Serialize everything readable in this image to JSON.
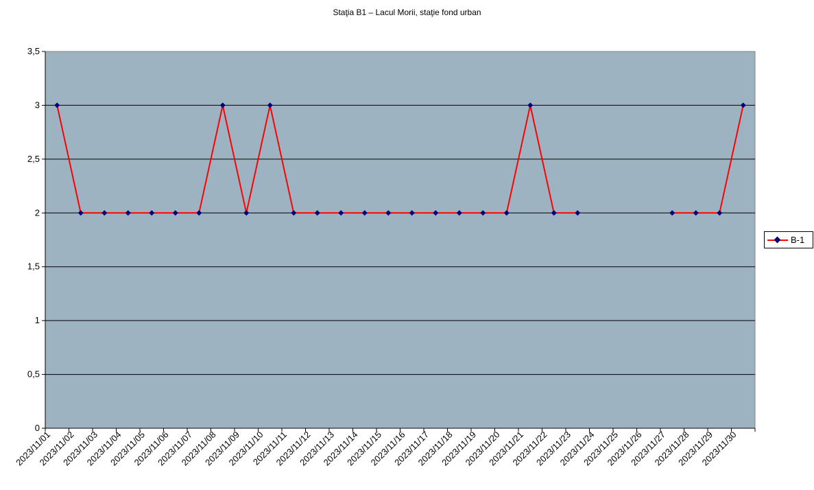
{
  "chart_data": {
    "type": "line",
    "title": "Staţia B1 – Lacul Morii, staţie fond urban",
    "xlabel": "",
    "ylabel": "",
    "categories": [
      "2023/11/01",
      "2023/11/02",
      "2023/11/03",
      "2023/11/04",
      "2023/11/05",
      "2023/11/06",
      "2023/11/07",
      "2023/11/08",
      "2023/11/09",
      "2023/11/10",
      "2023/11/11",
      "2023/11/12",
      "2023/11/13",
      "2023/11/14",
      "2023/11/15",
      "2023/11/16",
      "2023/11/17",
      "2023/11/18",
      "2023/11/19",
      "2023/11/20",
      "2023/11/21",
      "2023/11/22",
      "2023/11/23",
      "2023/11/24",
      "2023/11/25",
      "2023/11/26",
      "2023/11/27",
      "2023/11/28",
      "2023/11/29",
      "2023/11/30"
    ],
    "series": [
      {
        "name": "B-1",
        "values": [
          3,
          2,
          2,
          2,
          2,
          2,
          2,
          3,
          2,
          3,
          2,
          2,
          2,
          2,
          2,
          2,
          2,
          2,
          2,
          2,
          3,
          2,
          2,
          null,
          null,
          null,
          2,
          2,
          2,
          3
        ]
      }
    ],
    "ylim": [
      0,
      3.5
    ],
    "yticks": [
      "0",
      "0,5",
      "1",
      "1,5",
      "2",
      "2,5",
      "3",
      "3,5"
    ],
    "grid": true,
    "legend": "right",
    "colors": {
      "plot_background": "#9eb3c2",
      "line": "#ff0000",
      "marker": "#00007f",
      "gridline": "#000000"
    }
  }
}
